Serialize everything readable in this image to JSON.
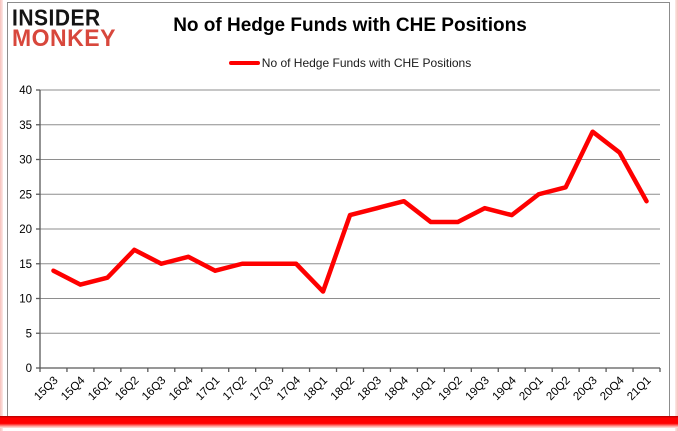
{
  "logo": {
    "line1": "INSIDER",
    "line2": "MONKEY"
  },
  "title": "No of Hedge Funds with CHE Positions",
  "legend": {
    "label": "No of Hedge Funds with CHE Positions"
  },
  "colors": {
    "series_line": "#fe0000",
    "legend_marker": "#fe0000",
    "logo_black": "#141414",
    "logo_red": "#d8473c",
    "grid_line": "#8e8e8e",
    "axis_line": "#595959",
    "box_border": "#8c8c8c",
    "bottom_bar": "#fe0000",
    "label_text": "#000000"
  },
  "chart_data": {
    "type": "line",
    "title": "No of Hedge Funds with CHE Positions",
    "categories": [
      "15Q3",
      "15Q4",
      "16Q1",
      "16Q2",
      "16Q3",
      "16Q4",
      "17Q1",
      "17Q2",
      "17Q3",
      "17Q4",
      "18Q1",
      "18Q2",
      "18Q3",
      "18Q4",
      "19Q1",
      "19Q2",
      "19Q3",
      "19Q4",
      "20Q1",
      "20Q2",
      "20Q3",
      "20Q4",
      "21Q1"
    ],
    "series": [
      {
        "name": "No of Hedge Funds with CHE Positions",
        "color": "#fe0000",
        "values": [
          14,
          12,
          13,
          17,
          15,
          16,
          14,
          15,
          15,
          15,
          11,
          22,
          23,
          24,
          21,
          21,
          23,
          22,
          25,
          26,
          34,
          31,
          24
        ]
      }
    ],
    "xlabel": "",
    "ylabel": "",
    "ylim": [
      0,
      40
    ],
    "yticks": [
      0,
      5,
      10,
      15,
      20,
      25,
      30,
      35,
      40
    ],
    "grid": "horizontal",
    "legend_position": "top"
  }
}
